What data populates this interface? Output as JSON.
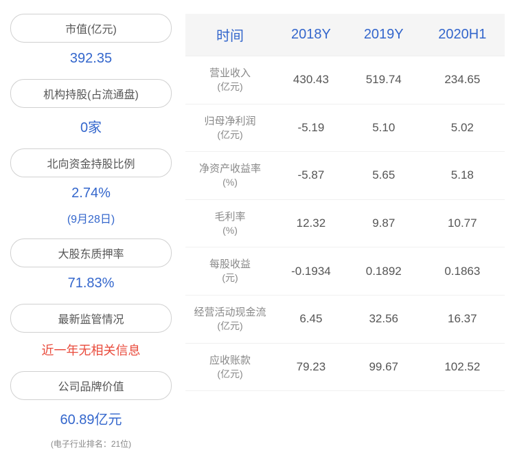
{
  "left_panel": {
    "items": [
      {
        "label": "市值(亿元)",
        "value": "392.35",
        "color": "blue"
      },
      {
        "label": "机构持股(占流通盘)",
        "value": "0家",
        "color": "blue"
      },
      {
        "label": "北向资金持股比例",
        "value": "2.74%",
        "sub": "(9月28日)",
        "color": "blue"
      },
      {
        "label": "大股东质押率",
        "value": "71.83%",
        "color": "blue"
      },
      {
        "label": "最新监管情况",
        "value": "近一年无相关信息",
        "color": "red"
      },
      {
        "label": "公司品牌价值",
        "value": "60.89亿元",
        "note": "(电子行业排名：21位)",
        "color": "blue"
      }
    ]
  },
  "table": {
    "headers": [
      "时间",
      "2018Y",
      "2019Y",
      "2020H1"
    ],
    "rows": [
      {
        "name": "营业收入",
        "unit": "(亿元)",
        "values": [
          "430.43",
          "519.74",
          "234.65"
        ]
      },
      {
        "name": "归母净利润",
        "unit": "(亿元)",
        "values": [
          "-5.19",
          "5.10",
          "5.02"
        ]
      },
      {
        "name": "净资产收益率",
        "unit": "(%)",
        "values": [
          "-5.87",
          "5.65",
          "5.18"
        ]
      },
      {
        "name": "毛利率",
        "unit": "(%)",
        "values": [
          "12.32",
          "9.87",
          "10.77"
        ]
      },
      {
        "name": "每股收益",
        "unit": "(元)",
        "values": [
          "-0.1934",
          "0.1892",
          "0.1863"
        ]
      },
      {
        "name": "经营活动现金流",
        "unit": "(亿元)",
        "values": [
          "6.45",
          "32.56",
          "16.37"
        ]
      },
      {
        "name": "应收账款",
        "unit": "(亿元)",
        "values": [
          "79.23",
          "99.67",
          "102.52"
        ]
      }
    ]
  },
  "colors": {
    "header_bg": "#f5f5f5",
    "header_text": "#3366cc",
    "value_blue": "#3366cc",
    "value_red": "#e94b3c",
    "text_gray": "#555555",
    "text_light": "#888888",
    "border": "#d0d0d0"
  }
}
